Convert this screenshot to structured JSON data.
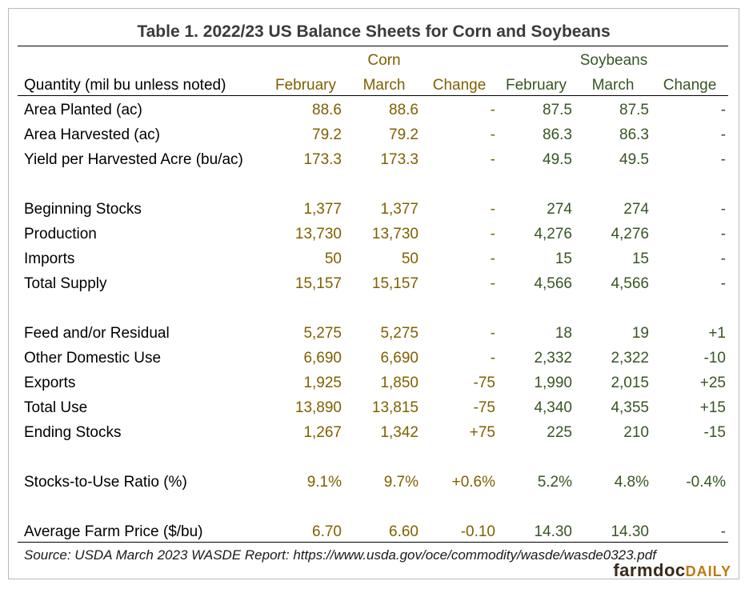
{
  "title": "Table 1. 2022/23 US Balance Sheets for Corn and Soybeans",
  "headers": {
    "corn_group": "Corn",
    "soy_group": "Soybeans",
    "quantity": "Quantity (mil bu unless noted)",
    "cols": [
      "February",
      "March",
      "Change",
      "February",
      "March",
      "Change"
    ]
  },
  "rows": [
    {
      "label": "Area Planted (ac)",
      "values": [
        "88.6",
        "88.6",
        "-",
        "87.5",
        "87.5",
        "-"
      ]
    },
    {
      "label": "Area Harvested (ac)",
      "values": [
        "79.2",
        "79.2",
        "-",
        "86.3",
        "86.3",
        "-"
      ]
    },
    {
      "label": "Yield per Harvested Acre (bu/ac)",
      "values": [
        "173.3",
        "173.3",
        "-",
        "49.5",
        "49.5",
        "-"
      ]
    },
    {
      "label": "Beginning Stocks",
      "values": [
        "1,377",
        "1,377",
        "-",
        "274",
        "274",
        "-"
      ]
    },
    {
      "label": "Production",
      "values": [
        "13,730",
        "13,730",
        "-",
        "4,276",
        "4,276",
        "-"
      ]
    },
    {
      "label": "Imports",
      "values": [
        "50",
        "50",
        "-",
        "15",
        "15",
        "-"
      ]
    },
    {
      "label": "Total Supply",
      "values": [
        "15,157",
        "15,157",
        "-",
        "4,566",
        "4,566",
        "-"
      ]
    },
    {
      "label": "Feed and/or Residual",
      "values": [
        "5,275",
        "5,275",
        "-",
        "18",
        "19",
        "+1"
      ]
    },
    {
      "label": "Other Domestic Use",
      "values": [
        "6,690",
        "6,690",
        "-",
        "2,332",
        "2,322",
        "-10"
      ]
    },
    {
      "label": "Exports",
      "values": [
        "1,925",
        "1,850",
        "-75",
        "1,990",
        "2,015",
        "+25"
      ]
    },
    {
      "label": "Total Use",
      "values": [
        "13,890",
        "13,815",
        "-75",
        "4,340",
        "4,355",
        "+15"
      ]
    },
    {
      "label": "Ending Stocks",
      "values": [
        "1,267",
        "1,342",
        "+75",
        "225",
        "210",
        "-15"
      ]
    },
    {
      "label": "Stocks-to-Use Ratio (%)",
      "values": [
        "9.1%",
        "9.7%",
        "+0.6%",
        "5.2%",
        "4.8%",
        "-0.4%"
      ]
    },
    {
      "label": "Average Farm Price ($/bu)",
      "values": [
        "6.70",
        "6.60",
        "-0.10",
        "14.30",
        "14.30",
        "-"
      ]
    }
  ],
  "source": "Source: USDA March 2023 WASDE Report: https://www.usda.gov/oce/commodity/wasde/wasde0323.pdf",
  "logo": {
    "main": "farmdoc",
    "accent": "DAILY"
  },
  "colors": {
    "corn": "#7f6000",
    "soybeans": "#375623"
  }
}
